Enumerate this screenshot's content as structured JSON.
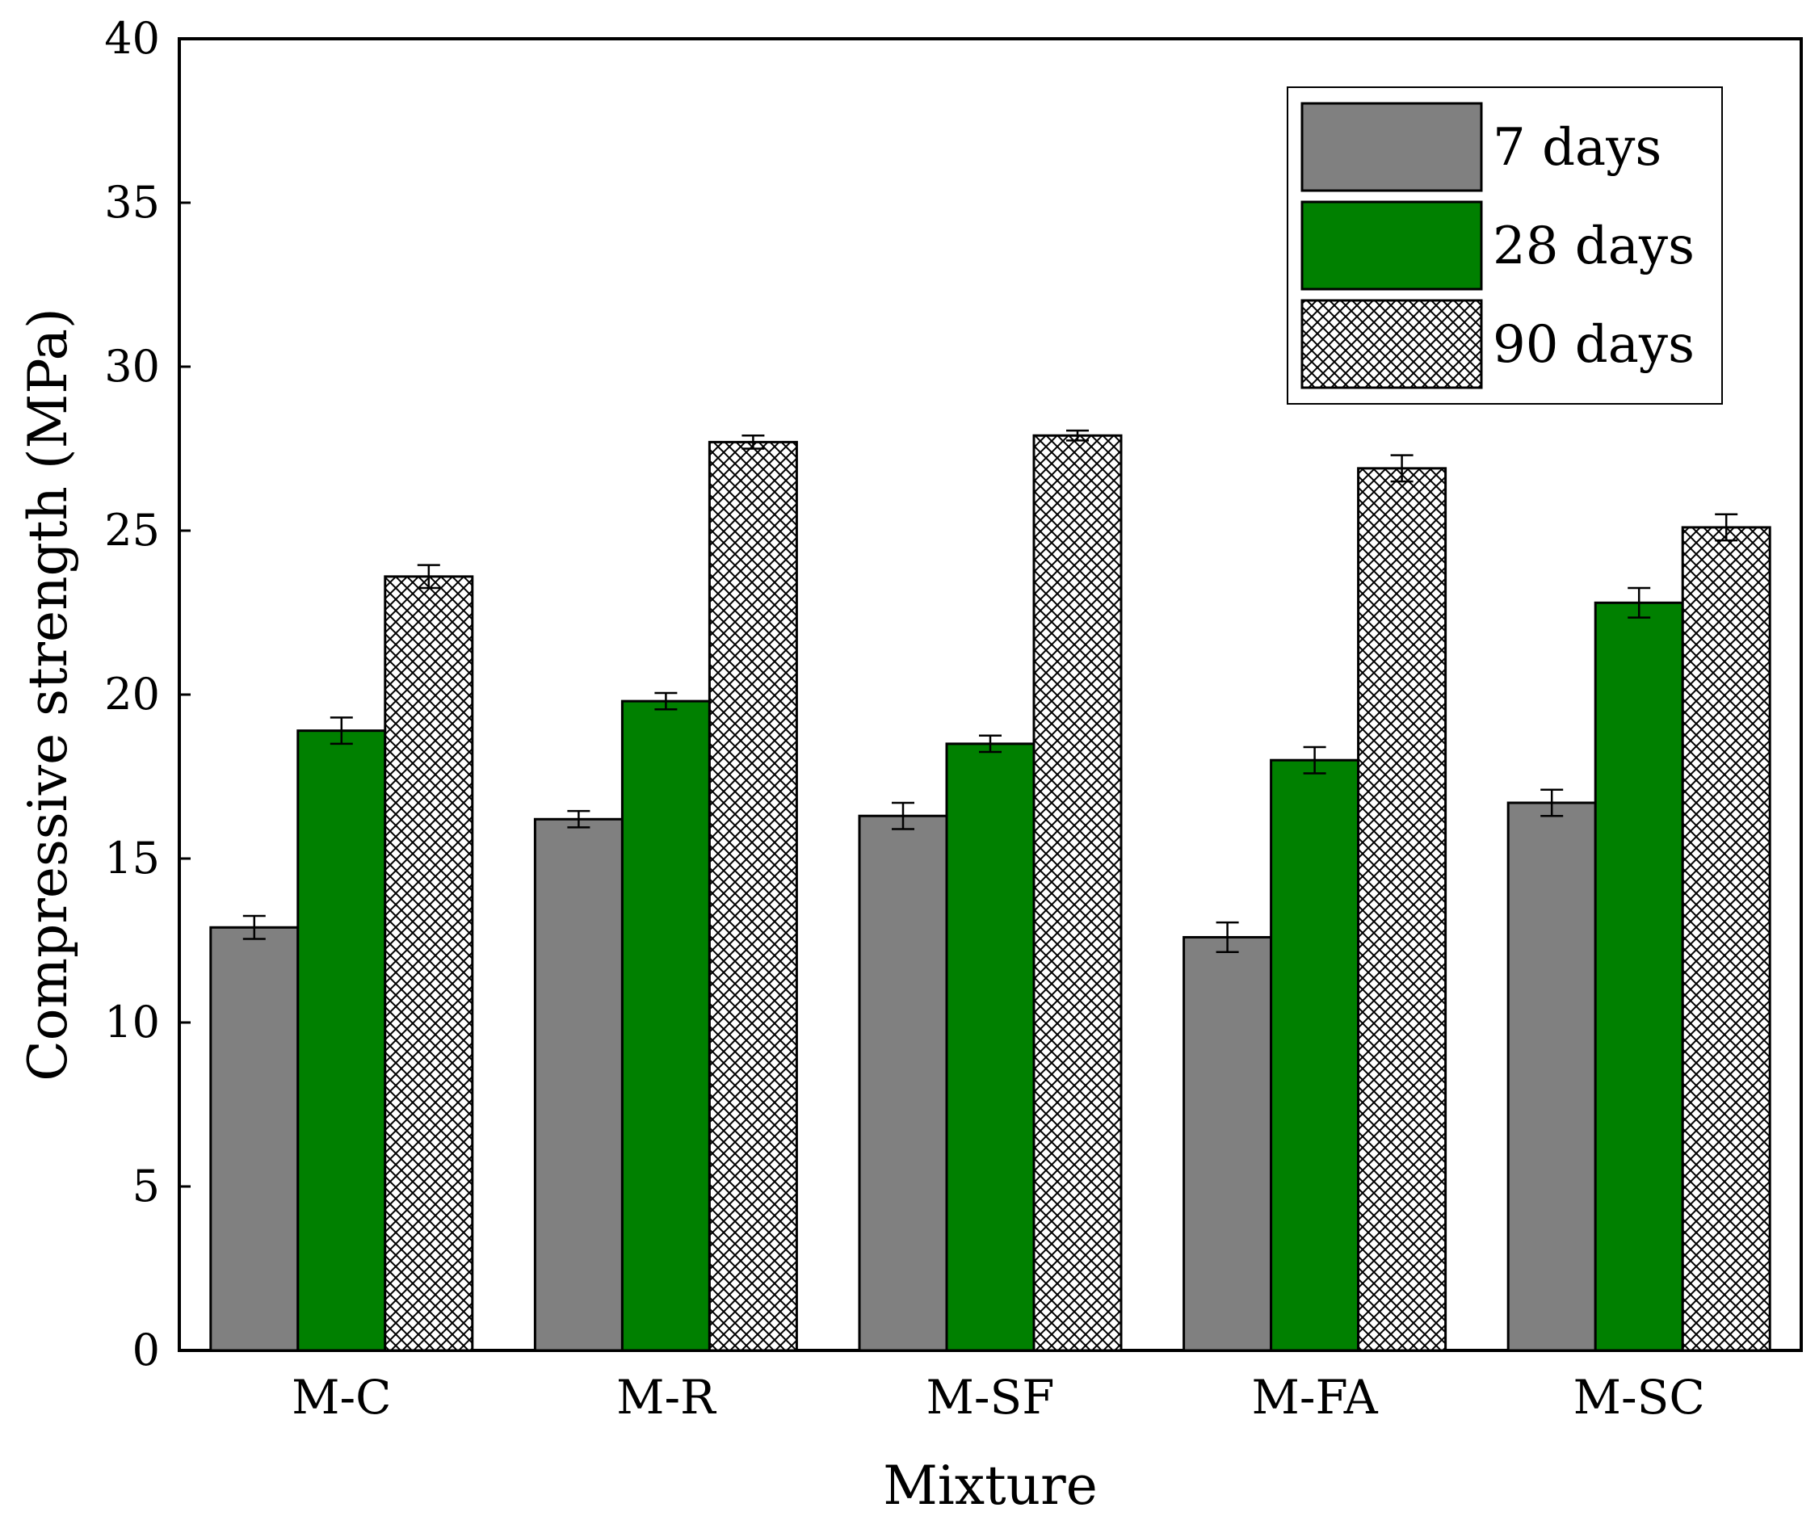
{
  "chart_data": {
    "type": "bar",
    "title": "",
    "xlabel": "Mixture",
    "ylabel": "Compressive strength (MPa)",
    "ylim": [
      0,
      40
    ],
    "yticks": [
      0,
      5,
      10,
      15,
      20,
      25,
      30,
      35,
      40
    ],
    "categories": [
      "M-C",
      "M-R",
      "M-SF",
      "M-FA",
      "M-SC"
    ],
    "series": [
      {
        "name": "7 days",
        "color": "#808080",
        "pattern": "solid",
        "values": [
          12.9,
          16.2,
          16.3,
          12.6,
          16.7
        ],
        "errors": [
          0.35,
          0.25,
          0.4,
          0.45,
          0.4
        ]
      },
      {
        "name": "28 days",
        "color": "#008000",
        "pattern": "solid",
        "values": [
          18.9,
          19.8,
          18.5,
          18.0,
          22.8
        ],
        "errors": [
          0.4,
          0.25,
          0.25,
          0.4,
          0.45
        ]
      },
      {
        "name": "90 days",
        "color": "#ffffff",
        "pattern": "crosshatch",
        "values": [
          23.6,
          27.7,
          27.9,
          26.9,
          25.1
        ],
        "errors": [
          0.35,
          0.2,
          0.15,
          0.4,
          0.4
        ]
      }
    ],
    "legend_position": "top-right",
    "grid": false
  }
}
